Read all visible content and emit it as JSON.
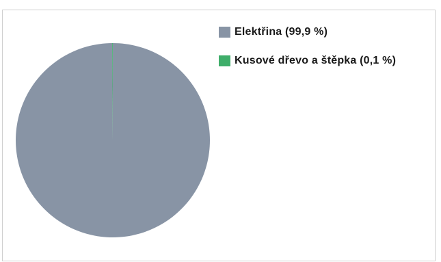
{
  "chart_data": {
    "type": "pie",
    "title": "",
    "legend_position": "right",
    "slices": [
      {
        "label": "Elektřina (99,9 %)",
        "value": 99.9,
        "color": "#8894a5"
      },
      {
        "label": "Kusové dřevo a štěpka (0,1 %)",
        "value": 0.1,
        "color": "#3fae6a"
      }
    ]
  }
}
